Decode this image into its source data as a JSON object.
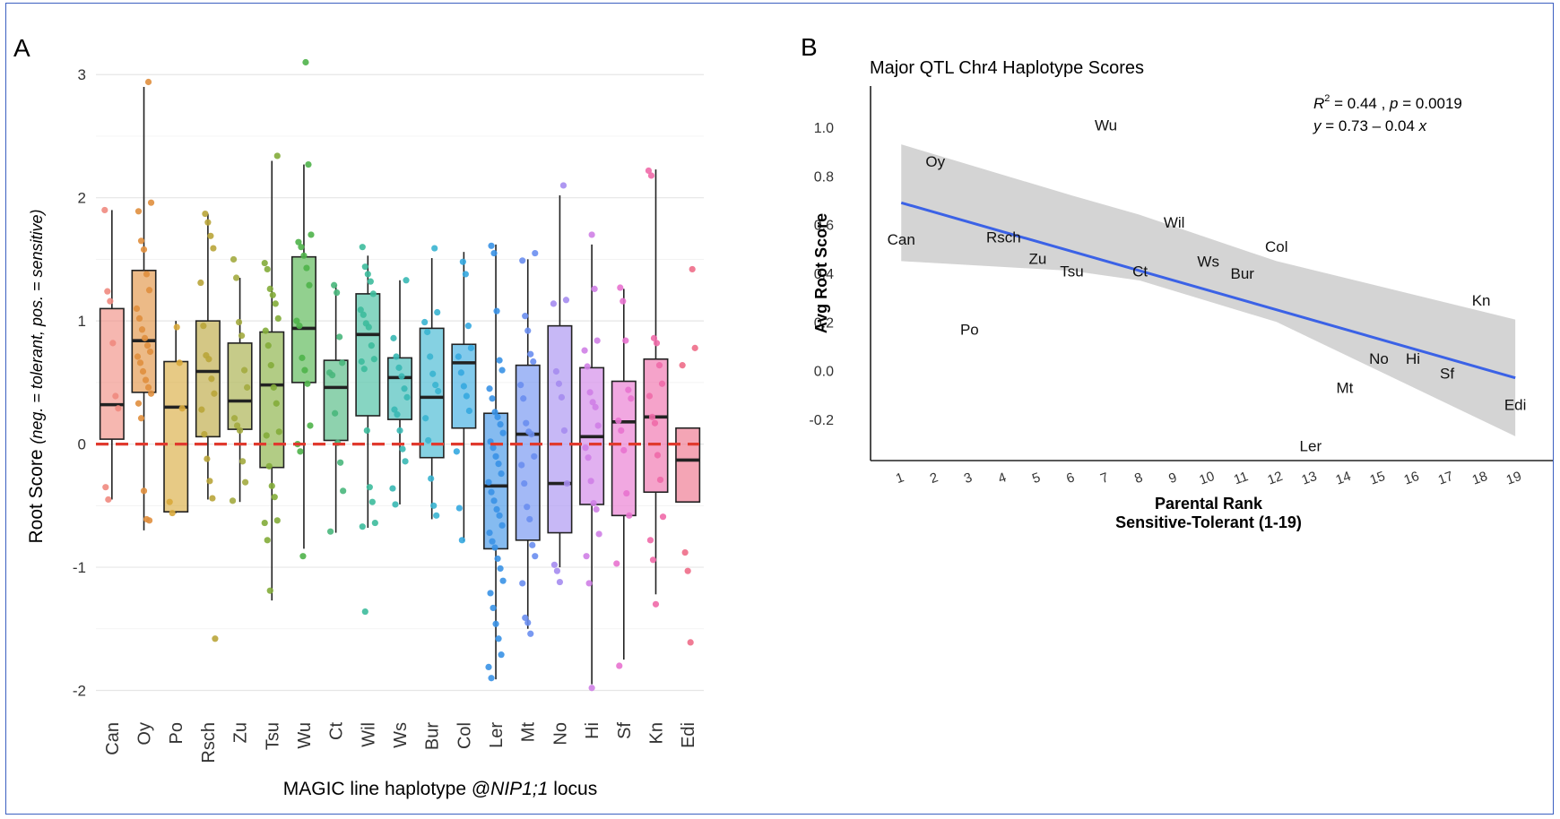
{
  "panels": {
    "a_letter": "A",
    "b_letter": "B"
  },
  "chart_data": [
    {
      "type": "box",
      "panel": "A",
      "title": "",
      "ylabel": "Root Score  (neg. = tolerant, pos. = sensitive)",
      "xlabel_prefix": "MAGIC line haplotype @",
      "xlabel_italic": "NIP1;1",
      "xlabel_suffix": " locus",
      "ylim": [
        -2.2,
        3.3
      ],
      "yticks": [
        -2,
        -1,
        0,
        1,
        2,
        3
      ],
      "grid": true,
      "reference_line": {
        "y": 0,
        "style": "dashed",
        "color": "#e03a2e"
      },
      "categories": [
        "Can",
        "Oy",
        "Po",
        "Rsch",
        "Zu",
        "Tsu",
        "Wu",
        "Ct",
        "Wil",
        "Ws",
        "Bur",
        "Col",
        "Ler",
        "Mt",
        "No",
        "Hi",
        "Sf",
        "Kn",
        "Edi"
      ],
      "colors": [
        "#f08a80",
        "#e08f3e",
        "#d8a93a",
        "#b9a53a",
        "#a3ab40",
        "#83ac3a",
        "#4fb34a",
        "#49b77c",
        "#3dbb9c",
        "#38b8b4",
        "#3ab4d0",
        "#35a9e0",
        "#3a92e6",
        "#6a8ef0",
        "#a58cf0",
        "#cf7fe6",
        "#e872cf",
        "#ef6aa9",
        "#ee6d88"
      ],
      "boxes": [
        {
          "name": "Can",
          "q1": 0.04,
          "median": 0.32,
          "q3": 1.1,
          "wlo": -0.45,
          "whi": 1.9
        },
        {
          "name": "Oy",
          "q1": 0.42,
          "median": 0.84,
          "q3": 1.41,
          "wlo": -0.7,
          "whi": 2.9
        },
        {
          "name": "Po",
          "q1": -0.55,
          "median": 0.3,
          "q3": 0.67,
          "wlo": -0.56,
          "whi": 1.0
        },
        {
          "name": "Rsch",
          "q1": 0.06,
          "median": 0.59,
          "q3": 1.0,
          "wlo": -0.45,
          "whi": 1.87
        },
        {
          "name": "Zu",
          "q1": 0.12,
          "median": 0.35,
          "q3": 0.82,
          "wlo": -0.47,
          "whi": 1.35
        },
        {
          "name": "Tsu",
          "q1": -0.19,
          "median": 0.48,
          "q3": 0.91,
          "wlo": -1.27,
          "whi": 2.3
        },
        {
          "name": "Wu",
          "q1": 0.5,
          "median": 0.94,
          "q3": 1.52,
          "wlo": -0.85,
          "whi": 2.27
        },
        {
          "name": "Ct",
          "q1": 0.03,
          "median": 0.46,
          "q3": 0.68,
          "wlo": -0.72,
          "whi": 1.29
        },
        {
          "name": "Wil",
          "q1": 0.23,
          "median": 0.89,
          "q3": 1.22,
          "wlo": -0.68,
          "whi": 1.53
        },
        {
          "name": "Ws",
          "q1": 0.2,
          "median": 0.54,
          "q3": 0.7,
          "wlo": -0.49,
          "whi": 1.33
        },
        {
          "name": "Bur",
          "q1": -0.11,
          "median": 0.38,
          "q3": 0.94,
          "wlo": -0.61,
          "whi": 1.51
        },
        {
          "name": "Col",
          "q1": 0.13,
          "median": 0.66,
          "q3": 0.81,
          "wlo": -0.79,
          "whi": 1.56
        },
        {
          "name": "Ler",
          "q1": -0.85,
          "median": -0.34,
          "q3": 0.25,
          "wlo": -1.91,
          "whi": 1.62
        },
        {
          "name": "Mt",
          "q1": -0.78,
          "median": 0.08,
          "q3": 0.64,
          "wlo": -1.5,
          "whi": 1.5
        },
        {
          "name": "No",
          "q1": -0.72,
          "median": -0.32,
          "q3": 0.96,
          "wlo": -1.0,
          "whi": 2.02
        },
        {
          "name": "Hi",
          "q1": -0.49,
          "median": 0.06,
          "q3": 0.62,
          "wlo": -1.95,
          "whi": 1.62
        },
        {
          "name": "Sf",
          "q1": -0.58,
          "median": 0.18,
          "q3": 0.51,
          "wlo": -1.75,
          "whi": 1.26
        },
        {
          "name": "Kn",
          "q1": -0.39,
          "median": 0.22,
          "q3": 0.69,
          "wlo": -1.22,
          "whi": 2.23
        },
        {
          "name": "Edi",
          "q1": -0.47,
          "median": -0.13,
          "q3": 0.13,
          "wlo": -0.47,
          "whi": 0.13
        }
      ],
      "points": [
        [
          1.9,
          1.24,
          1.16,
          0.82,
          0.39,
          0.29,
          -0.35,
          -0.45
        ],
        [
          2.94,
          1.96,
          1.89,
          1.65,
          1.58,
          1.38,
          1.25,
          1.1,
          1.02,
          0.93,
          0.86,
          0.8,
          0.75,
          0.71,
          0.66,
          0.59,
          0.52,
          0.46,
          0.41,
          0.33,
          0.21,
          -0.38,
          -0.61,
          -0.62
        ],
        [
          0.95,
          0.66,
          0.29,
          -0.47,
          -0.56
        ],
        [
          1.87,
          1.8,
          1.69,
          1.59,
          1.31,
          0.96,
          0.72,
          0.69,
          0.53,
          0.41,
          0.28,
          0.08,
          -0.12,
          -0.3,
          -0.44,
          -1.58
        ],
        [
          1.5,
          1.35,
          0.99,
          0.88,
          0.6,
          0.46,
          0.21,
          0.15,
          0.11,
          -0.14,
          -0.31,
          -0.46
        ],
        [
          2.34,
          1.47,
          1.42,
          1.26,
          1.21,
          1.14,
          1.02,
          0.92,
          0.8,
          0.64,
          0.46,
          0.33,
          0.1,
          0.07,
          -0.18,
          -0.34,
          -0.43,
          -0.62,
          -0.64,
          -0.78,
          -1.19
        ],
        [
          3.1,
          2.27,
          1.7,
          1.64,
          1.6,
          1.53,
          1.43,
          1.29,
          1.0,
          0.96,
          0.7,
          0.6,
          0.49,
          0.15,
          0.0,
          -0.06,
          -0.91
        ],
        [
          1.29,
          1.23,
          0.87,
          0.66,
          0.58,
          0.56,
          0.25,
          0.01,
          -0.15,
          -0.38,
          -0.71
        ],
        [
          1.6,
          1.44,
          1.38,
          1.32,
          1.22,
          1.09,
          1.05,
          0.98,
          0.95,
          0.8,
          0.69,
          0.67,
          0.61,
          0.11,
          -0.35,
          -0.47,
          -0.64,
          -0.67,
          -1.36
        ],
        [
          1.33,
          0.86,
          0.71,
          0.62,
          0.55,
          0.45,
          0.38,
          0.28,
          0.24,
          0.11,
          -0.04,
          -0.14,
          -0.36,
          -0.49
        ],
        [
          1.59,
          1.07,
          0.99,
          0.91,
          0.71,
          0.57,
          0.48,
          0.43,
          0.21,
          0.03,
          -0.28,
          -0.5,
          -0.58
        ],
        [
          1.48,
          1.38,
          0.96,
          0.78,
          0.71,
          0.58,
          0.47,
          0.39,
          0.27,
          -0.06,
          -0.52,
          -0.78
        ],
        [
          1.61,
          1.55,
          1.08,
          0.68,
          0.6,
          0.45,
          0.37,
          0.26,
          0.22,
          0.16,
          0.09,
          0.02,
          -0.03,
          -0.1,
          -0.16,
          -0.24,
          -0.31,
          -0.39,
          -0.46,
          -0.53,
          -0.58,
          -0.66,
          -0.72,
          -0.79,
          -0.84,
          -0.93,
          -1.01,
          -1.11,
          -1.21,
          -1.33,
          -1.46,
          -1.58,
          -1.71,
          -1.81,
          -1.9
        ],
        [
          1.55,
          1.49,
          1.04,
          0.92,
          0.73,
          0.67,
          0.48,
          0.37,
          0.17,
          0.1,
          0.08,
          -0.1,
          -0.17,
          -0.32,
          -0.51,
          -0.61,
          -0.82,
          -0.91,
          -1.13,
          -1.41,
          -1.45,
          -1.54
        ],
        [
          2.1,
          1.17,
          1.14,
          0.59,
          0.49,
          0.38,
          0.11,
          -0.32,
          -0.98,
          -1.03,
          -1.12
        ],
        [
          1.7,
          1.26,
          0.84,
          0.76,
          0.63,
          0.42,
          0.34,
          0.3,
          0.15,
          -0.03,
          -0.11,
          -0.3,
          -0.48,
          -0.53,
          -0.73,
          -0.91,
          -1.13,
          -1.98
        ],
        [
          1.27,
          1.16,
          0.84,
          0.44,
          0.37,
          0.19,
          0.11,
          -0.05,
          -0.4,
          -0.58,
          -0.97,
          -1.8
        ],
        [
          2.22,
          2.18,
          0.86,
          0.82,
          0.64,
          0.49,
          0.39,
          0.22,
          0.17,
          -0.09,
          -0.29,
          -0.59,
          -0.78,
          -0.94,
          -1.3
        ],
        [
          1.42,
          0.78,
          0.64,
          -0.88,
          -1.03,
          -1.61
        ]
      ]
    },
    {
      "type": "scatter",
      "panel": "B",
      "title": "Major QTL Chr4 Haplotype Scores",
      "xlabel_line1": "Parental Rank",
      "xlabel_line2": "Sensitive-Tolerant (1-19)",
      "ylabel": "Avg Root Score",
      "xlim": [
        0.1,
        20.1
      ],
      "ylim": [
        -0.37,
        1.17
      ],
      "xticks": [
        1,
        2,
        3,
        4,
        5,
        6,
        7,
        8,
        9,
        10,
        11,
        12,
        13,
        14,
        15,
        16,
        17,
        18,
        19
      ],
      "yticks": [
        -0.2,
        0.0,
        0.2,
        0.4,
        0.6,
        0.8,
        1.0
      ],
      "ytick_labels": [
        "-0.2",
        "0.0",
        "0.2",
        "0.4",
        "0.6",
        "0.8",
        "1.0"
      ],
      "grid": false,
      "annotation_r2_prefix": "R",
      "annotation_r2_sup": "2",
      "annotation_r2_rest": " = 0.44 , ",
      "annotation_p_label": "p",
      "annotation_p_rest": " = 0.0019",
      "annotation_eq_y": "y",
      "annotation_eq_rest": " = 0.73 – 0.04 ",
      "annotation_eq_x": "x",
      "fit": {
        "x0": 1,
        "y0": 0.69,
        "x1": 19,
        "y1": -0.03,
        "color": "#3b62e6"
      },
      "ci_band": {
        "upper": [
          [
            1,
            0.93
          ],
          [
            6,
            0.72
          ],
          [
            8,
            0.64
          ],
          [
            12,
            0.45
          ],
          [
            19,
            0.21
          ]
        ],
        "lower": [
          [
            1,
            0.45
          ],
          [
            6,
            0.41
          ],
          [
            8,
            0.37
          ],
          [
            12,
            0.2
          ],
          [
            19,
            -0.27
          ]
        ]
      },
      "labels": [
        {
          "name": "Can",
          "x": 1,
          "y": 0.54
        },
        {
          "name": "Oy",
          "x": 2,
          "y": 0.86
        },
        {
          "name": "Po",
          "x": 3,
          "y": 0.17
        },
        {
          "name": "Rsch",
          "x": 4,
          "y": 0.55
        },
        {
          "name": "Zu",
          "x": 5,
          "y": 0.46
        },
        {
          "name": "Tsu",
          "x": 6,
          "y": 0.41
        },
        {
          "name": "Wu",
          "x": 7,
          "y": 1.01
        },
        {
          "name": "Ct",
          "x": 8,
          "y": 0.41
        },
        {
          "name": "Wil",
          "x": 9,
          "y": 0.61
        },
        {
          "name": "Ws",
          "x": 10,
          "y": 0.45
        },
        {
          "name": "Bur",
          "x": 11,
          "y": 0.4
        },
        {
          "name": "Col",
          "x": 12,
          "y": 0.51
        },
        {
          "name": "Ler",
          "x": 13,
          "y": -0.31
        },
        {
          "name": "Mt",
          "x": 14,
          "y": -0.07
        },
        {
          "name": "No",
          "x": 15,
          "y": 0.05
        },
        {
          "name": "Hi",
          "x": 16,
          "y": 0.05
        },
        {
          "name": "Sf",
          "x": 17,
          "y": -0.01
        },
        {
          "name": "Kn",
          "x": 18,
          "y": 0.29
        },
        {
          "name": "Edi",
          "x": 19,
          "y": -0.14
        }
      ]
    }
  ]
}
